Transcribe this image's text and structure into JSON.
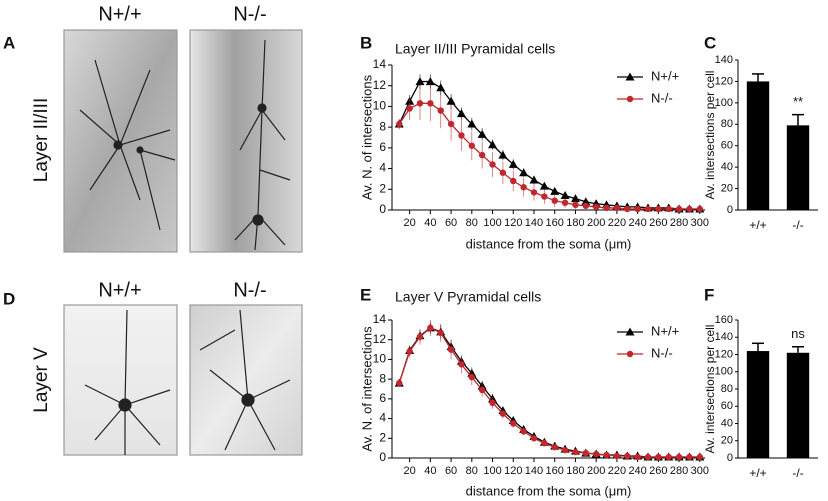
{
  "panels": {
    "letters": [
      "A",
      "B",
      "C",
      "D",
      "E",
      "F"
    ],
    "top_images": [
      "N+/+",
      "N-/-"
    ],
    "bottom_images": [
      "N+/+",
      "N-/-"
    ],
    "rows": [
      "Layer II/III",
      "Layer V"
    ]
  },
  "chart_data": [
    {
      "type": "line",
      "title": "Layer II/III Pyramidal cells",
      "ylabel": "Av. N. of intersections",
      "xlabel": "distance from the soma (μm)",
      "x": [
        10,
        20,
        30,
        40,
        50,
        60,
        70,
        80,
        90,
        100,
        110,
        120,
        130,
        140,
        150,
        160,
        170,
        180,
        190,
        200,
        210,
        220,
        230,
        240,
        250,
        260,
        270,
        280,
        290,
        300
      ],
      "xlim": [
        3,
        305
      ],
      "xticks": [
        20,
        40,
        60,
        80,
        100,
        120,
        140,
        160,
        180,
        200,
        220,
        240,
        260,
        280,
        300
      ],
      "ylim": [
        0,
        14
      ],
      "yticks": [
        0,
        2,
        4,
        6,
        8,
        10,
        12,
        14
      ],
      "legend": "upper right",
      "series": [
        {
          "name": "N+/+",
          "color": "#000000",
          "marker": "triangle",
          "values": [
            8.3,
            10.5,
            12.4,
            12.4,
            11.8,
            10.5,
            9.3,
            8.3,
            7.3,
            6.3,
            5.3,
            4.4,
            3.6,
            2.9,
            2.3,
            1.8,
            1.4,
            1.1,
            0.8,
            0.6,
            0.5,
            0.4,
            0.3,
            0.3,
            0.2,
            0.2,
            0.2,
            0.1,
            0.1,
            0.1
          ],
          "errors": [
            0.4,
            0.6,
            0.7,
            0.7,
            0.7,
            0.7,
            0.6,
            0.6,
            0.6,
            0.5,
            0.5,
            0.5,
            0.4,
            0.4,
            0.3,
            0.3,
            0.3,
            0.2,
            0.2,
            0.2,
            0.1,
            0.1,
            0.1,
            0.1,
            0.1,
            0.1,
            0.1,
            0.1,
            0.1,
            0.1
          ]
        },
        {
          "name": "N-/-",
          "color": "#c0282d",
          "marker": "circle",
          "values": [
            8.3,
            9.8,
            10.3,
            10.3,
            9.6,
            8.3,
            7.2,
            6.2,
            5.3,
            4.4,
            3.6,
            2.8,
            2.2,
            1.7,
            1.3,
            0.9,
            0.7,
            0.5,
            0.4,
            0.3,
            0.2,
            0.2,
            0.1,
            0.1,
            0.1,
            0.1,
            0.1,
            0.1,
            0.1,
            0.1
          ],
          "errors": [
            0.5,
            1.1,
            1.6,
            1.7,
            1.7,
            1.6,
            1.5,
            1.4,
            1.3,
            1.2,
            1.1,
            1.0,
            0.9,
            0.8,
            0.7,
            0.6,
            0.5,
            0.4,
            0.3,
            0.3,
            0.2,
            0.2,
            0.1,
            0.1,
            0.1,
            0.1,
            0.1,
            0.1,
            0.1,
            0.1
          ]
        }
      ]
    },
    {
      "type": "bar",
      "ylabel": "Av. intersections per cell",
      "categories": [
        "+/+",
        "-/-"
      ],
      "values": [
        120,
        79
      ],
      "errors": [
        7,
        10
      ],
      "color": "#000000",
      "annotation": "**",
      "ylim": [
        0,
        140
      ],
      "yticks": [
        0,
        20,
        40,
        60,
        80,
        100,
        120,
        140
      ]
    },
    {
      "type": "line",
      "title": "Layer V Pyramidal cells",
      "ylabel": "Av. N. of intersections",
      "xlabel": "distance from the soma (μm)",
      "x": [
        10,
        20,
        30,
        40,
        50,
        60,
        70,
        80,
        90,
        100,
        110,
        120,
        130,
        140,
        150,
        160,
        170,
        180,
        190,
        200,
        210,
        220,
        230,
        240,
        250,
        260,
        270,
        280,
        290,
        300
      ],
      "xlim": [
        3,
        305
      ],
      "xticks": [
        20,
        40,
        60,
        80,
        100,
        120,
        140,
        160,
        180,
        200,
        220,
        240,
        260,
        280,
        300
      ],
      "ylim": [
        0,
        14
      ],
      "yticks": [
        0,
        2,
        4,
        6,
        8,
        10,
        12,
        14
      ],
      "legend": "upper right",
      "series": [
        {
          "name": "N+/+",
          "color": "#000000",
          "marker": "triangle",
          "values": [
            7.6,
            10.9,
            12.4,
            13.2,
            12.8,
            11.3,
            9.8,
            8.6,
            7.3,
            6.0,
            4.8,
            3.8,
            2.9,
            2.2,
            1.6,
            1.2,
            0.9,
            0.7,
            0.5,
            0.4,
            0.3,
            0.3,
            0.2,
            0.2,
            0.1,
            0.1,
            0.1,
            0.1,
            0.1,
            0.1
          ],
          "errors": [
            0.3,
            0.5,
            0.6,
            0.6,
            0.7,
            0.7,
            0.6,
            0.6,
            0.5,
            0.5,
            0.4,
            0.4,
            0.3,
            0.3,
            0.2,
            0.2,
            0.2,
            0.1,
            0.1,
            0.1,
            0.1,
            0.1,
            0.1,
            0.1,
            0.1,
            0.1,
            0.1,
            0.1,
            0.1,
            0.1
          ]
        },
        {
          "name": "N-/-",
          "color": "#c0282d",
          "marker": "circle",
          "values": [
            7.6,
            10.8,
            12.3,
            13.2,
            12.7,
            11.0,
            9.5,
            8.2,
            6.9,
            5.6,
            4.5,
            3.5,
            2.7,
            2.0,
            1.5,
            1.1,
            0.8,
            0.6,
            0.5,
            0.4,
            0.3,
            0.2,
            0.2,
            0.1,
            0.1,
            0.1,
            0.1,
            0.1,
            0.1,
            0.1
          ],
          "errors": [
            0.3,
            0.6,
            0.8,
            0.8,
            0.9,
            1.0,
            0.9,
            0.8,
            0.7,
            0.6,
            0.5,
            0.4,
            0.4,
            0.3,
            0.3,
            0.2,
            0.2,
            0.2,
            0.1,
            0.1,
            0.1,
            0.1,
            0.1,
            0.1,
            0.1,
            0.1,
            0.1,
            0.1,
            0.1,
            0.1
          ]
        }
      ]
    },
    {
      "type": "bar",
      "ylabel": "Av. intersections per cell",
      "categories": [
        "+/+",
        "-/-"
      ],
      "values": [
        124,
        122
      ],
      "errors": [
        9,
        7
      ],
      "color": "#000000",
      "annotation": "ns",
      "ylim": [
        0,
        160
      ],
      "yticks": [
        0,
        20,
        40,
        60,
        80,
        100,
        120,
        140,
        160
      ]
    }
  ]
}
